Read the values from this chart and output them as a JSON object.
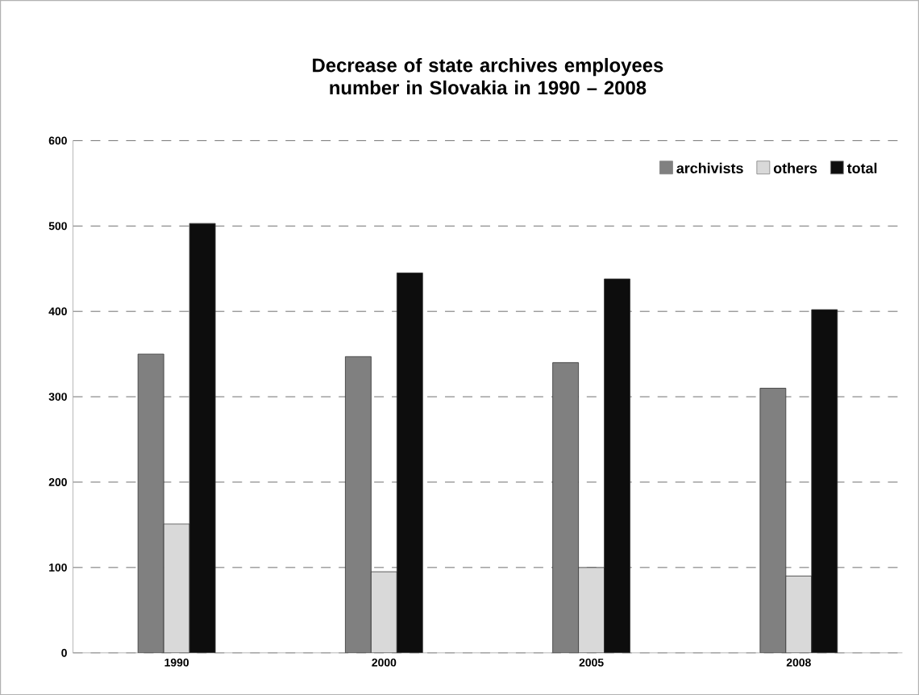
{
  "chart_data": {
    "type": "bar",
    "title": "Decrease of state archives employees number in Slovakia in 1990 – 2008",
    "categories": [
      "1990",
      "2000",
      "2005",
      "2008"
    ],
    "series": [
      {
        "name": "archivists",
        "color": "#808080",
        "values": [
          350,
          347,
          340,
          310
        ]
      },
      {
        "name": "others",
        "color": "#d9d9d9",
        "values": [
          151,
          95,
          100,
          90
        ]
      },
      {
        "name": "total",
        "color": "#0d0d0d",
        "values": [
          503,
          445,
          438,
          402
        ]
      }
    ],
    "ylim": [
      0,
      600
    ],
    "yticks": [
      0,
      100,
      200,
      300,
      400,
      500,
      600
    ],
    "grid": "y",
    "legend": "top right"
  }
}
